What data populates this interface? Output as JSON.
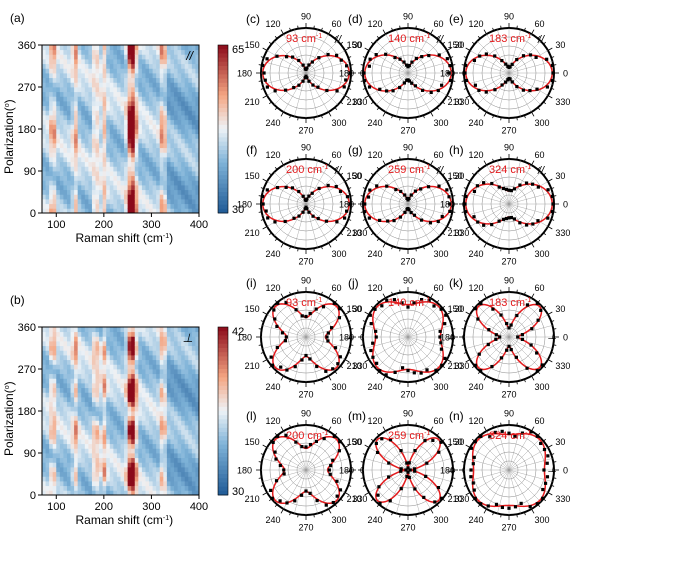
{
  "colors": {
    "high": "#8b0a1a",
    "mid": "#f7f7f7",
    "low": "#1f5a96",
    "fit": "#e41a1c",
    "points": "#000000"
  },
  "chart_data": [
    {
      "id": "a",
      "panel_label": "(a)",
      "type": "heatmap",
      "xlabel": "Raman shift (cm",
      "xlabel_sup": "-1",
      "xlabel_close": ")",
      "ylabel": "Polarization(",
      "ylabel_sup": "o",
      "ylabel_close": ")",
      "xlim": [
        70,
        400
      ],
      "ylim": [
        0,
        360
      ],
      "xticks": [
        "100",
        "200",
        "300",
        "400"
      ],
      "yticks": [
        "0",
        "90",
        "180",
        "270",
        "360"
      ],
      "colorbar": {
        "min": "30",
        "max": "65"
      },
      "configuration": "//",
      "peaks": [
        93,
        140,
        183,
        200,
        259,
        324
      ],
      "modulation": "cos2"
    },
    {
      "id": "b",
      "panel_label": "(b)",
      "type": "heatmap",
      "xlabel": "Raman shift (cm",
      "xlabel_sup": "-1",
      "xlabel_close": ")",
      "ylabel": "Polarization(",
      "ylabel_sup": "o",
      "ylabel_close": ")",
      "xlim": [
        70,
        400
      ],
      "ylim": [
        0,
        360
      ],
      "xticks": [
        "100",
        "200",
        "300",
        "400"
      ],
      "yticks": [
        "0",
        "90",
        "180",
        "270",
        "360"
      ],
      "colorbar": {
        "min": "30",
        "max": "42"
      },
      "configuration": "⊥",
      "peaks": [
        93,
        140,
        183,
        200,
        259,
        324
      ],
      "modulation": "sin2_2"
    },
    {
      "id": "c",
      "panel_label": "(c)",
      "type": "polar",
      "mode": "//",
      "peak_label": "93 cm",
      "peak_sup": "-1",
      "a": 1.0,
      "b": 0.08
    },
    {
      "id": "d",
      "panel_label": "(d)",
      "type": "polar",
      "mode": "//",
      "peak_label": "140 cm",
      "peak_sup": "-1",
      "a": 1.0,
      "b": 0.15
    },
    {
      "id": "e",
      "panel_label": "(e)",
      "type": "polar",
      "mode": "//",
      "peak_label": "183 cm",
      "peak_sup": "-1",
      "a": 1.0,
      "b": 0.12
    },
    {
      "id": "f",
      "panel_label": "(f)",
      "type": "polar",
      "mode": "//",
      "peak_label": "200 cm",
      "peak_sup": "-1",
      "a": 1.0,
      "b": 0.08
    },
    {
      "id": "g",
      "panel_label": "(g)",
      "type": "polar",
      "mode": "//",
      "peak_label": "259 cm",
      "peak_sup": "-1",
      "a": 1.0,
      "b": 0.1
    },
    {
      "id": "h",
      "panel_label": "(h)",
      "type": "polar",
      "mode": "//",
      "peak_label": "324 cm",
      "peak_sup": "-1",
      "a": 1.0,
      "b": 0.3
    },
    {
      "id": "i",
      "panel_label": "(i)",
      "type": "polar",
      "mode": "⊥",
      "peak_label": "93 cm",
      "peak_sup": "-1",
      "a": 0.45,
      "b": 0.55
    },
    {
      "id": "j",
      "panel_label": "(j)",
      "type": "polar",
      "mode": "⊥",
      "peak_label": "140 cm",
      "peak_sup": "-1",
      "a": 0.75,
      "b": 0.25
    },
    {
      "id": "k",
      "panel_label": "(k)",
      "type": "polar",
      "mode": "⊥",
      "peak_label": "183 cm",
      "peak_sup": "-1",
      "a": 0.2,
      "b": 0.8
    },
    {
      "id": "l",
      "panel_label": "(l)",
      "type": "polar",
      "mode": "⊥",
      "peak_label": "200 cm",
      "peak_sup": "-1",
      "a": 0.5,
      "b": 0.5
    },
    {
      "id": "m",
      "panel_label": "(m)",
      "type": "polar",
      "mode": "⊥",
      "peak_label": "259 cm",
      "peak_sup": "-1",
      "a": 0.05,
      "b": 0.95
    },
    {
      "id": "n",
      "panel_label": "(n)",
      "type": "polar",
      "mode": "⊥",
      "peak_label": "324 cm",
      "peak_sup": "-1",
      "a": 0.82,
      "b": 0.18
    }
  ],
  "polar_axis": {
    "angle_labels": [
      "0",
      "30",
      "60",
      "90",
      "120",
      "150",
      "180",
      "210",
      "240",
      "270",
      "300",
      "330"
    ]
  }
}
